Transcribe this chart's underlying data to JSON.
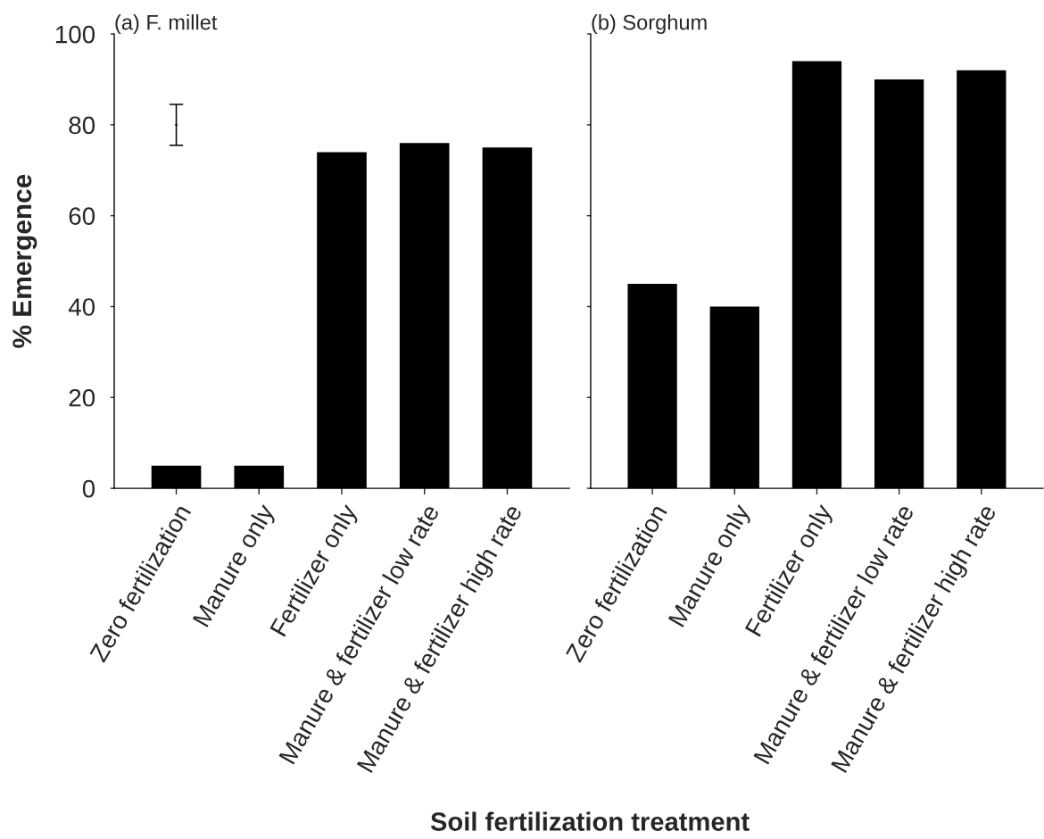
{
  "chart_data": [
    {
      "type": "bar",
      "title": "(a) F. millet",
      "ylabel": "% Emergence",
      "xlabel": "Soil fertilization treatment",
      "categories": [
        "Zero fertilization",
        "Manure only",
        "Fertilizer only",
        "Manure & fertilizer low rate",
        "Manure & fertilizer high rate"
      ],
      "series": [
        {
          "type": "bar",
          "color": "#000000",
          "values": [
            5,
            5,
            74,
            76,
            75
          ]
        },
        {
          "type": "scatter",
          "color": "#000000",
          "values": [
            80,
            null,
            null,
            null,
            null
          ],
          "errors": [
            [
              75.5,
              84.5
            ],
            null,
            null,
            null,
            null
          ]
        }
      ],
      "ylim": [
        0,
        100
      ],
      "yticks": [
        0,
        20,
        40,
        60,
        80,
        100
      ]
    },
    {
      "type": "bar",
      "title": "(b) Sorghum",
      "categories": [
        "Zero fertilization",
        "Manure only",
        "Fertilizer only",
        "Manure & fertilizer low rate",
        "Manure & fertilizer high rate"
      ],
      "values": [
        45,
        40,
        94,
        90,
        92
      ],
      "color": "#000000",
      "ylim": [
        0,
        100
      ],
      "yticks": [
        0,
        20,
        40,
        60,
        80,
        100
      ],
      "tick_labels": "x"
    }
  ]
}
